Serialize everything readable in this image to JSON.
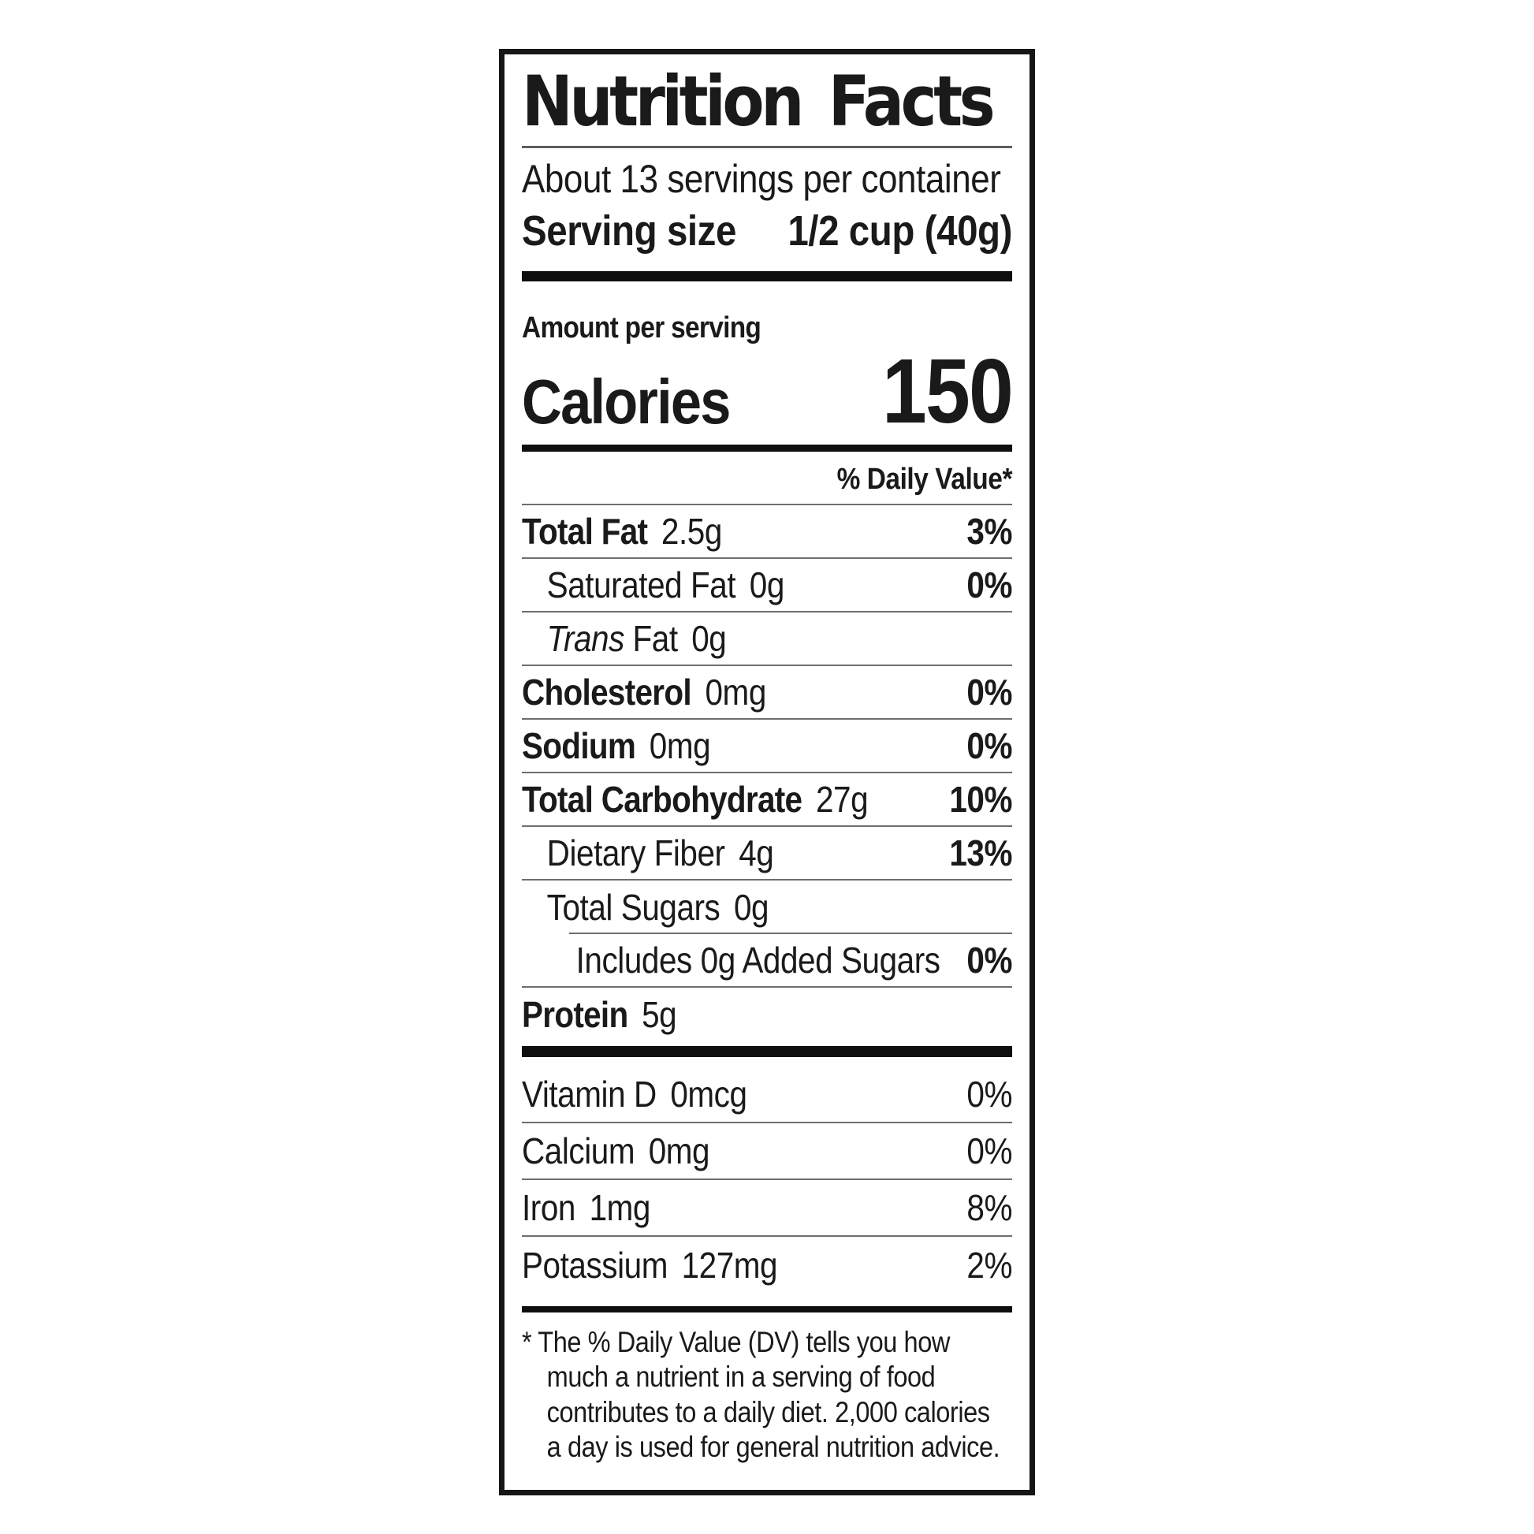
{
  "label": {
    "title": "Nutrition Facts",
    "servings_per_container": "About 13 servings per container",
    "serving_size": {
      "label": "Serving size",
      "value": "1/2 cup (40g)"
    },
    "amount_per_serving": "Amount per serving",
    "calories": {
      "label": "Calories",
      "value": "150"
    },
    "daily_value_header": "% Daily Value*",
    "nutrients": [
      {
        "italic_prefix": "",
        "name": "Total Fat",
        "amount": "2.5g",
        "dv": "3%",
        "bold": true,
        "indent": 0,
        "sep": "full"
      },
      {
        "italic_prefix": "",
        "name": "Saturated Fat",
        "amount": "0g",
        "dv": "0%",
        "bold": false,
        "indent": 1,
        "sep": "full"
      },
      {
        "italic_prefix": "Trans",
        "name": "Fat",
        "amount": "0g",
        "dv": "",
        "bold": false,
        "indent": 1,
        "sep": "full"
      },
      {
        "italic_prefix": "",
        "name": "Cholesterol",
        "amount": "0mg",
        "dv": "0%",
        "bold": true,
        "indent": 0,
        "sep": "full"
      },
      {
        "italic_prefix": "",
        "name": "Sodium",
        "amount": "0mg",
        "dv": "0%",
        "bold": true,
        "indent": 0,
        "sep": "full"
      },
      {
        "italic_prefix": "",
        "name": "Total Carbohydrate",
        "amount": "27g",
        "dv": "10%",
        "bold": true,
        "indent": 0,
        "sep": "full"
      },
      {
        "italic_prefix": "",
        "name": "Dietary Fiber",
        "amount": "4g",
        "dv": "13%",
        "bold": false,
        "indent": 1,
        "sep": "full"
      },
      {
        "italic_prefix": "",
        "name": "Total Sugars",
        "amount": "0g",
        "dv": "",
        "bold": false,
        "indent": 1,
        "sep": "indent"
      },
      {
        "italic_prefix": "",
        "name": "Includes 0g Added Sugars",
        "amount": "",
        "dv": "0%",
        "bold": false,
        "indent": 2,
        "sep": "full"
      },
      {
        "italic_prefix": "",
        "name": "Protein",
        "amount": "5g",
        "dv": "",
        "bold": true,
        "indent": 0,
        "sep": "none"
      }
    ],
    "vitamins": [
      {
        "name": "Vitamin D",
        "amount": "0mcg",
        "dv": "0%",
        "sep": "full"
      },
      {
        "name": "Calcium",
        "amount": "0mg",
        "dv": "0%",
        "sep": "full"
      },
      {
        "name": "Iron",
        "amount": "1mg",
        "dv": "8%",
        "sep": "full"
      },
      {
        "name": "Potassium",
        "amount": "127mg",
        "dv": "2%",
        "sep": "none"
      }
    ],
    "footnote_lines": [
      "* The % Daily Value (DV) tells you how",
      "much a nutrient in a serving of food",
      "contributes to a daily diet. 2,000 calories",
      "a day is used for general nutrition advice."
    ],
    "colors": {
      "text": "#1a1a1a",
      "bar": "#0f0f0f",
      "hairline": "#6e6e6e"
    }
  }
}
